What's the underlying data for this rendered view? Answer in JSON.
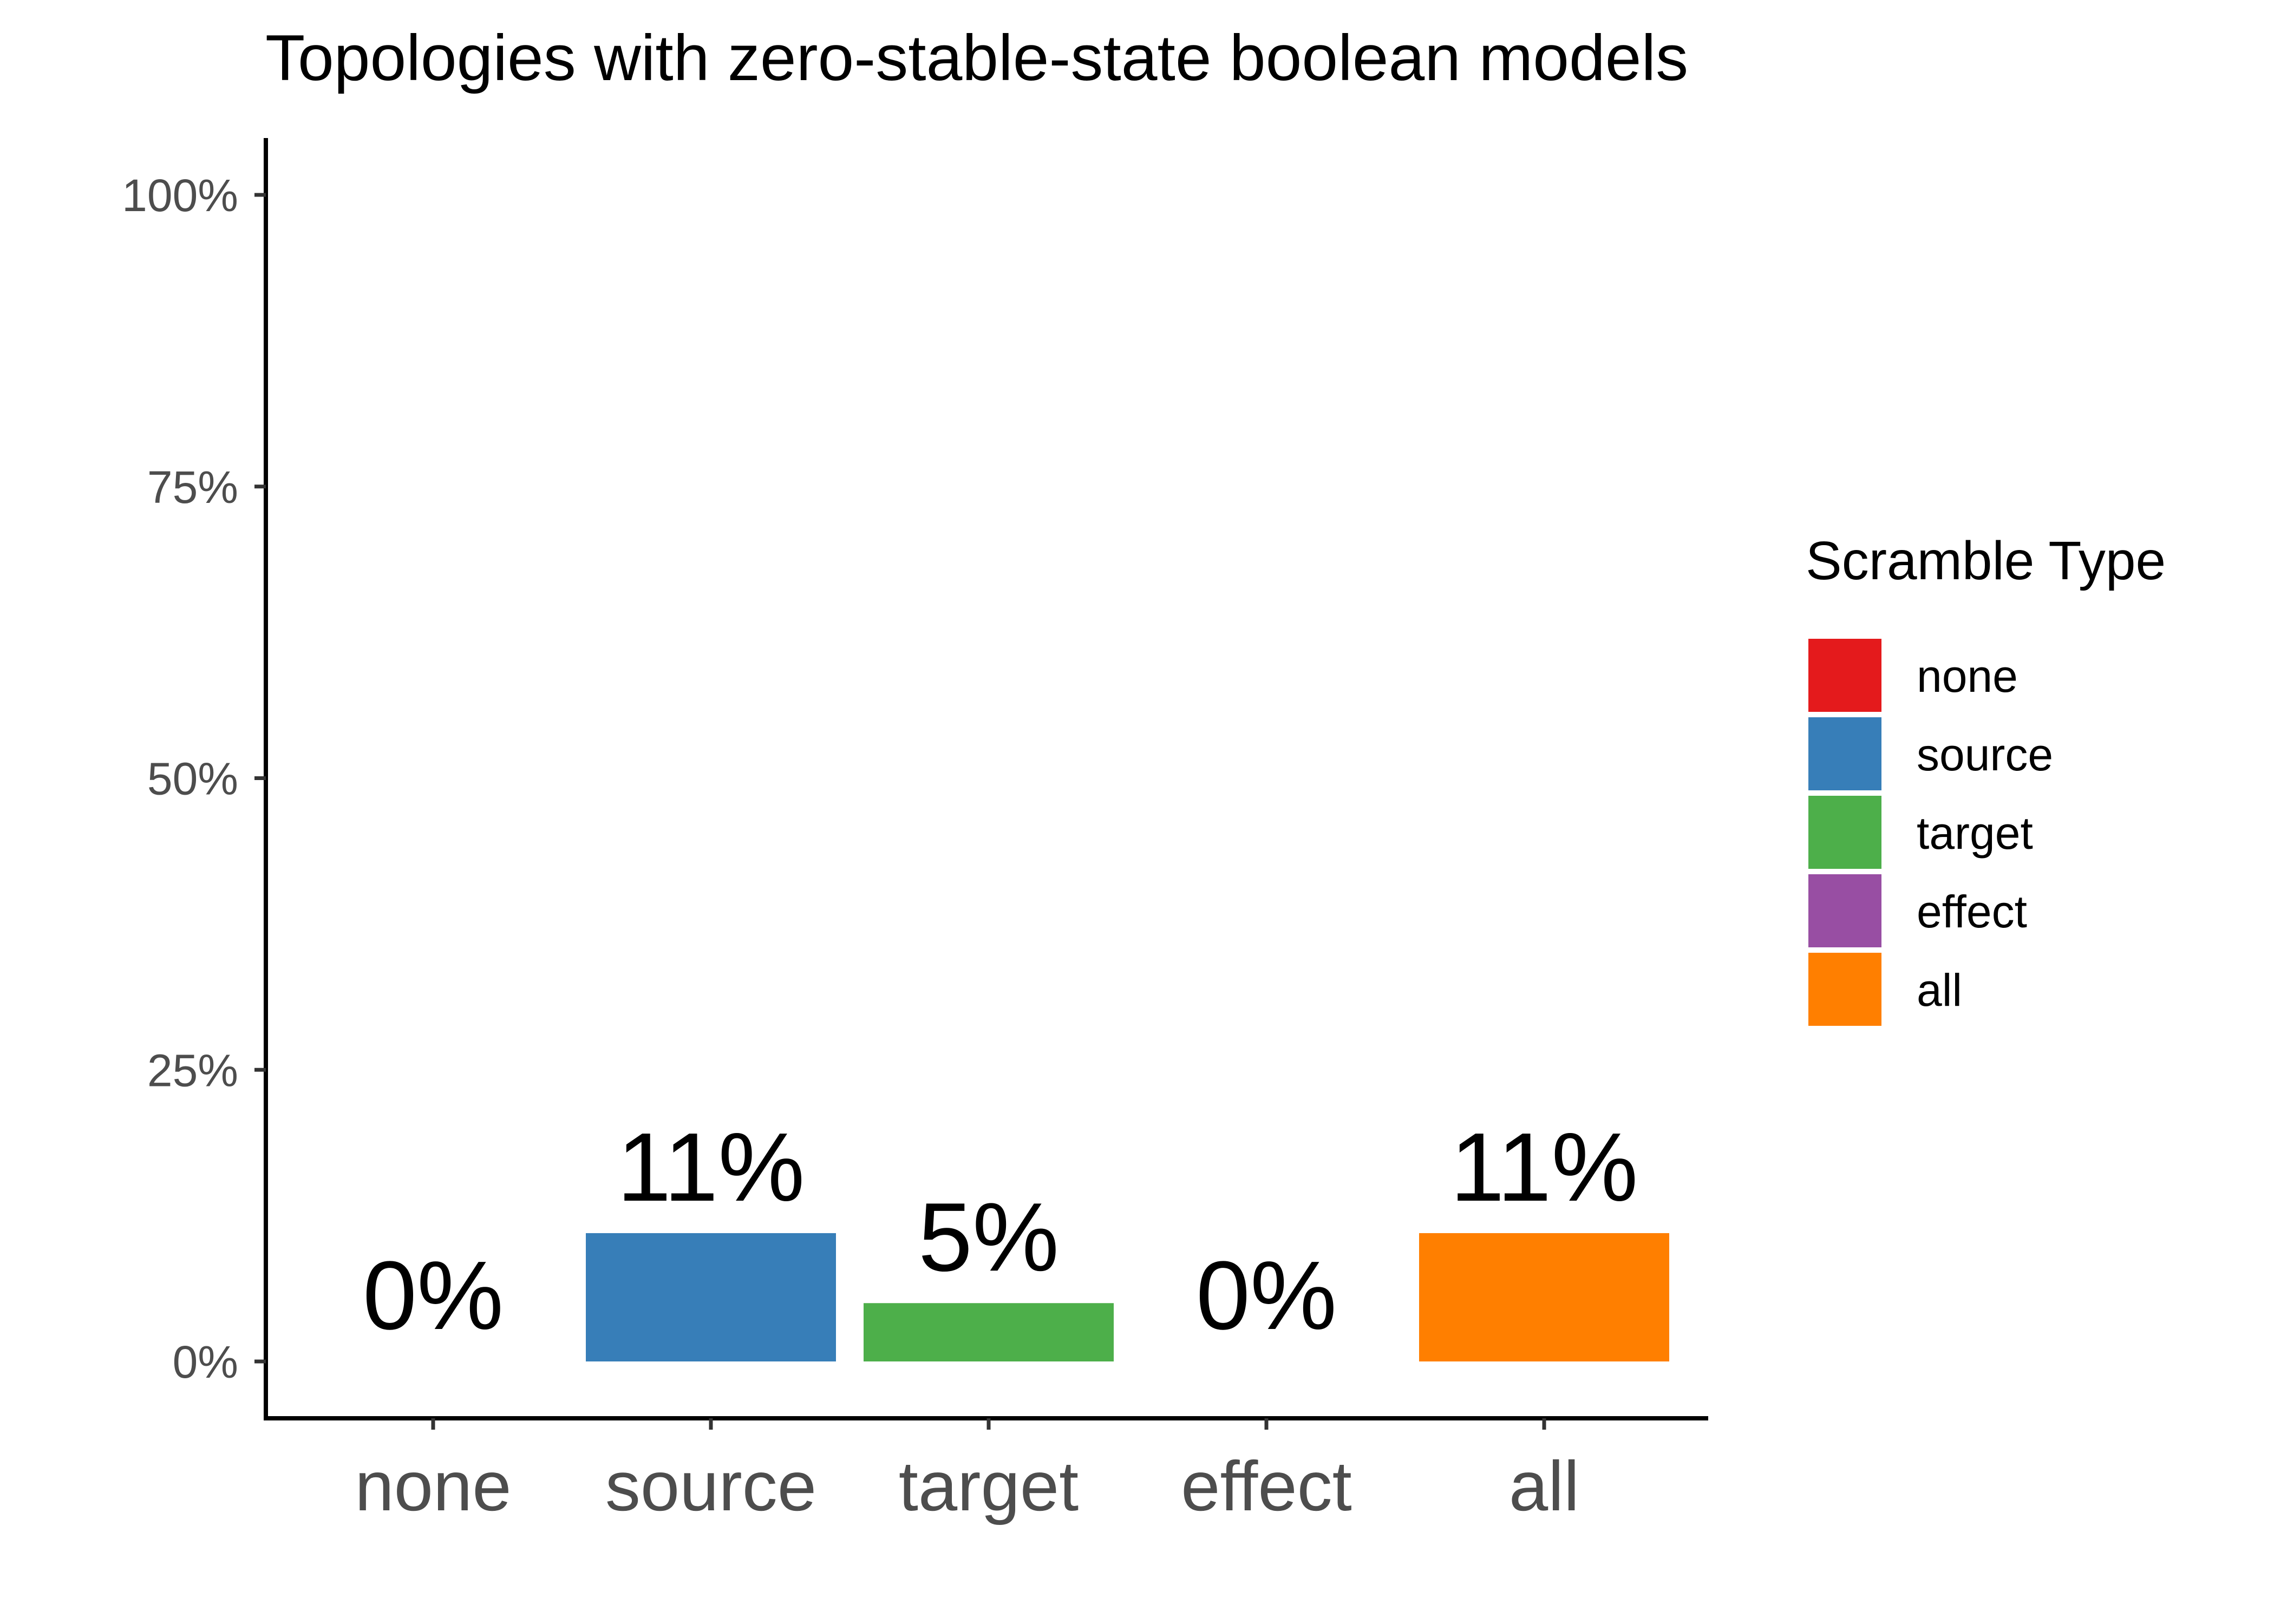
{
  "chart_data": {
    "type": "bar",
    "title": "Topologies with zero-stable-state boolean models",
    "xlabel": "",
    "ylabel": "",
    "categories": [
      "none",
      "source",
      "target",
      "effect",
      "all"
    ],
    "values": [
      0,
      11,
      5,
      0,
      11
    ],
    "value_labels": [
      "0%",
      "11%",
      "5%",
      "0%",
      "11%"
    ],
    "colors": [
      "#E41A1C",
      "#377EB8",
      "#4DAF4A",
      "#984EA3",
      "#FF7F00"
    ],
    "ylim": [
      0,
      100
    ],
    "yticks": [
      0,
      25,
      50,
      75,
      100
    ],
    "ytick_labels": [
      "0%",
      "25%",
      "50%",
      "75%",
      "100%"
    ],
    "grid": false,
    "legend": {
      "title": "Scramble Type",
      "placement": "right",
      "entries": [
        "none",
        "source",
        "target",
        "effect",
        "all"
      ]
    }
  }
}
